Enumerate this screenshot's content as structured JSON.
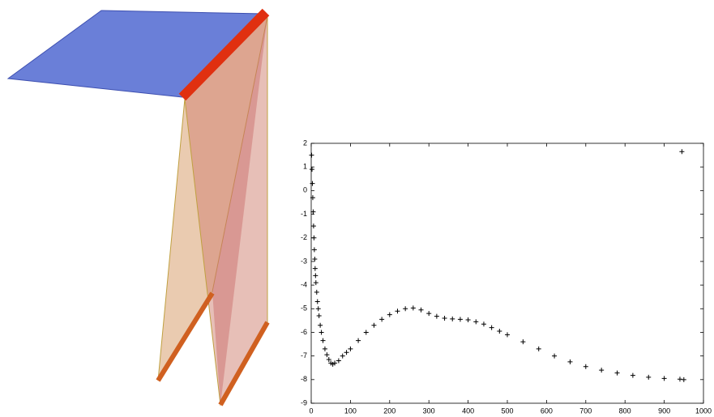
{
  "chart_data": {
    "type": "scatter",
    "x": [
      1,
      2,
      3,
      4,
      5,
      6,
      7,
      8,
      9,
      10,
      11,
      12,
      14,
      16,
      18,
      20,
      23,
      26,
      30,
      35,
      40,
      45,
      50,
      55,
      60,
      70,
      80,
      90,
      100,
      120,
      140,
      160,
      180,
      200,
      220,
      240,
      260,
      280,
      300,
      320,
      340,
      360,
      380,
      400,
      420,
      440,
      460,
      480,
      500,
      540,
      580,
      620,
      660,
      700,
      740,
      780,
      820,
      860,
      900,
      940,
      950,
      945
    ],
    "values": [
      1.5,
      0.9,
      0.3,
      -0.3,
      -0.9,
      -1.5,
      -2.0,
      -2.5,
      -2.9,
      -3.3,
      -3.6,
      -3.9,
      -4.3,
      -4.7,
      -5.0,
      -5.3,
      -5.7,
      -6.0,
      -6.35,
      -6.7,
      -6.95,
      -7.15,
      -7.3,
      -7.35,
      -7.3,
      -7.2,
      -7.0,
      -6.85,
      -6.7,
      -6.35,
      -6.0,
      -5.7,
      -5.45,
      -5.25,
      -5.1,
      -5.0,
      -4.97,
      -5.05,
      -5.2,
      -5.32,
      -5.4,
      -5.43,
      -5.45,
      -5.47,
      -5.55,
      -5.65,
      -5.8,
      -5.95,
      -6.1,
      -6.4,
      -6.7,
      -7.0,
      -7.25,
      -7.45,
      -7.6,
      -7.72,
      -7.82,
      -7.9,
      -7.95,
      -7.98,
      -8.0,
      1.65
    ],
    "color": "#000000",
    "xlim": [
      0,
      1000
    ],
    "xticks": [
      0,
      100,
      200,
      300,
      400,
      500,
      600,
      700,
      800,
      900,
      1000
    ],
    "ylim": [
      -9,
      2
    ],
    "yticks": [
      -9,
      -8,
      -7,
      -6,
      -5,
      -4,
      -3,
      -2,
      -1,
      0,
      1,
      2
    ]
  }
}
